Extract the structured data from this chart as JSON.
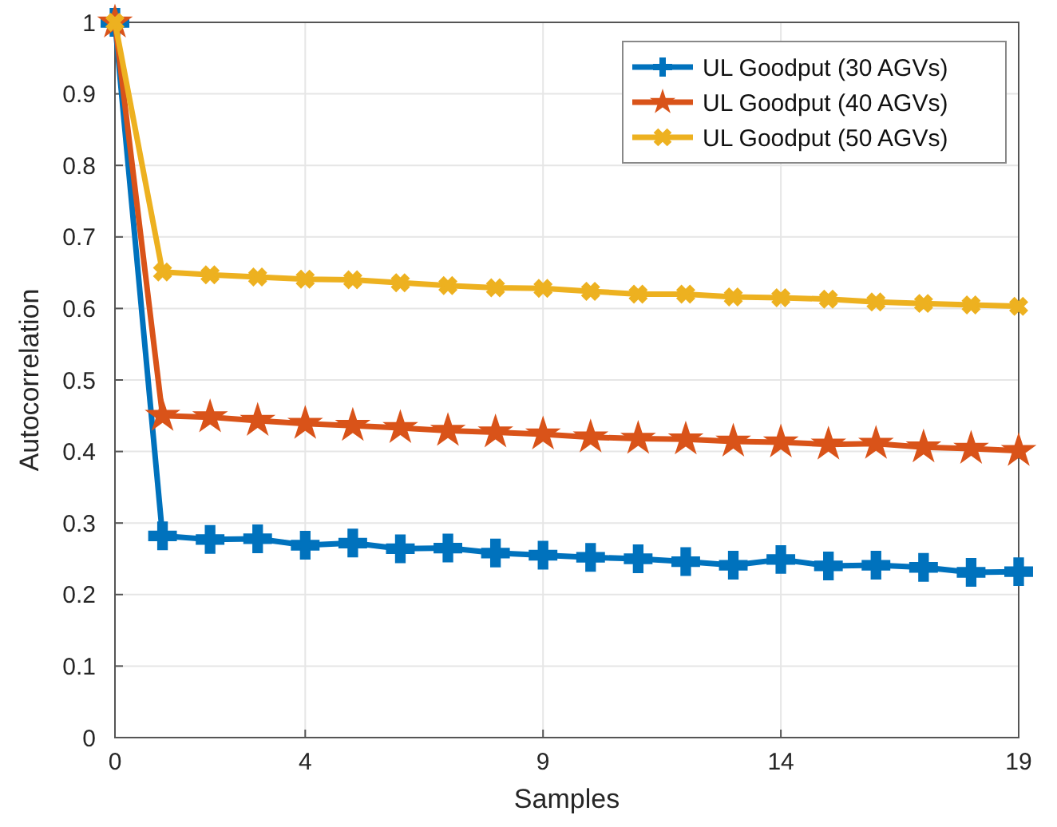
{
  "chart_data": {
    "type": "line",
    "xlabel": "Samples",
    "ylabel": "Autocorrelation",
    "x": [
      0,
      1,
      2,
      3,
      4,
      5,
      6,
      7,
      8,
      9,
      10,
      11,
      12,
      13,
      14,
      15,
      16,
      17,
      18,
      19
    ],
    "series": [
      {
        "name": "UL Goodput (30 AGVs)",
        "color": "#0072bd",
        "marker": "cross",
        "values": [
          1,
          0.282,
          0.277,
          0.278,
          0.269,
          0.272,
          0.264,
          0.265,
          0.258,
          0.255,
          0.252,
          0.25,
          0.246,
          0.241,
          0.249,
          0.24,
          0.241,
          0.238,
          0.231,
          0.232
        ]
      },
      {
        "name": "UL Goodput (40 AGVs)",
        "color": "#d95319",
        "marker": "star",
        "values": [
          1,
          0.45,
          0.448,
          0.443,
          0.439,
          0.436,
          0.433,
          0.429,
          0.427,
          0.424,
          0.42,
          0.418,
          0.417,
          0.414,
          0.413,
          0.41,
          0.411,
          0.406,
          0.404,
          0.401
        ]
      },
      {
        "name": "UL Goodput (50 AGVs)",
        "color": "#edb120",
        "marker": "cross",
        "values": [
          1,
          0.651,
          0.647,
          0.644,
          0.641,
          0.64,
          0.636,
          0.632,
          0.629,
          0.628,
          0.624,
          0.62,
          0.62,
          0.616,
          0.615,
          0.613,
          0.609,
          0.607,
          0.605,
          0.603
        ]
      }
    ],
    "xlim": [
      0,
      19
    ],
    "xticks": [
      0,
      4,
      9,
      14,
      19
    ],
    "ylim": [
      0,
      1
    ],
    "yticks": [
      0,
      0.1,
      0.2,
      0.3,
      0.4,
      0.5,
      0.6,
      0.7,
      0.8,
      0.9,
      1
    ],
    "grid": true,
    "legend": "top right",
    "line_style": "solid"
  }
}
